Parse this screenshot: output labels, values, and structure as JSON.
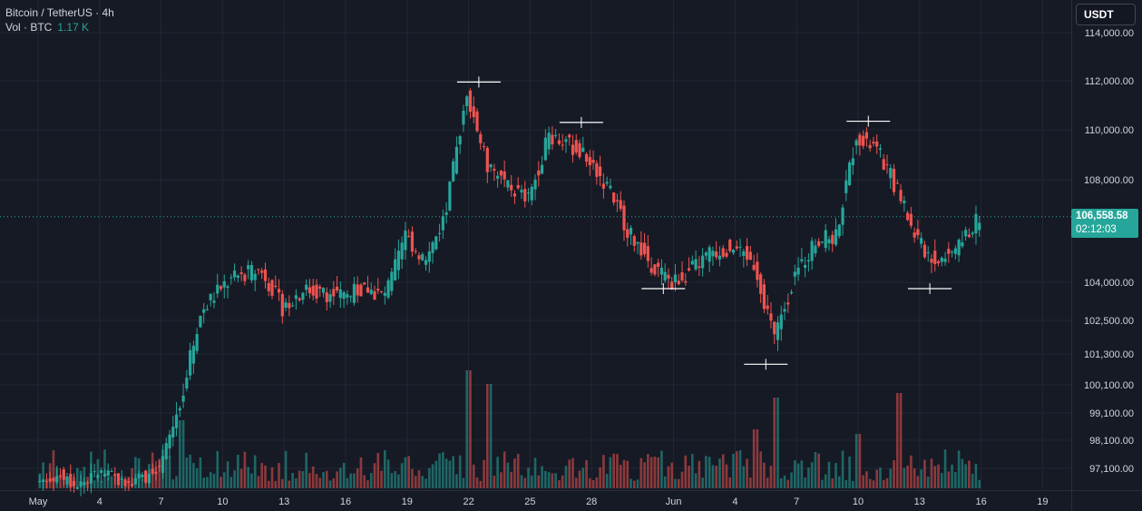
{
  "legend": {
    "symbol": "Bitcoin / TetherUS · 4h",
    "vol_label": "Vol · BTC",
    "vol_value": "1.17 K"
  },
  "unit_button": "USDT",
  "last_price": {
    "price": "106,558.58",
    "countdown": "02:12:03"
  },
  "colors": {
    "background": "#161a25",
    "up": "#26a69a",
    "down": "#ef5350",
    "grid": "#232733",
    "text": "#d1d4dc"
  },
  "chart_data": {
    "type": "candlestick",
    "title": "",
    "y_axis_labels": [
      "114,000.00",
      "112,000.00",
      "110,000.00",
      "108,000.00",
      "104,000.00",
      "102,500.00",
      "101,300.00",
      "100,100.00",
      "99,100.00",
      "98,100.00",
      "97,100.00"
    ],
    "x_axis_labels": [
      "May",
      "4",
      "7",
      "10",
      "13",
      "16",
      "19",
      "22",
      "25",
      "28",
      "Jun",
      "4",
      "7",
      "10",
      "13",
      "16",
      "19"
    ],
    "grid": true,
    "last_price": 106558.58,
    "marked_levels": [
      {
        "x": "May 22",
        "y": 111950
      },
      {
        "x": "May 27",
        "y": 110300
      },
      {
        "x": "Jun 10",
        "y": 110350
      },
      {
        "x": "May 31",
        "y": 103750
      },
      {
        "x": "Jun 5",
        "y": 100900
      },
      {
        "x": "Jun 13",
        "y": 103750
      }
    ],
    "daily_closes": [
      {
        "date": "May 1",
        "close": 96500
      },
      {
        "date": "May 2",
        "close": 96800
      },
      {
        "date": "May 3",
        "close": 96300
      },
      {
        "date": "May 4",
        "close": 96900
      },
      {
        "date": "May 5",
        "close": 96600
      },
      {
        "date": "May 6",
        "close": 96700
      },
      {
        "date": "May 7",
        "close": 96900
      },
      {
        "date": "May 8",
        "close": 99500
      },
      {
        "date": "May 9",
        "close": 102800
      },
      {
        "date": "May 10",
        "close": 103800
      },
      {
        "date": "May 11",
        "close": 104300
      },
      {
        "date": "May 12",
        "close": 104500
      },
      {
        "date": "May 13",
        "close": 103000
      },
      {
        "date": "May 14",
        "close": 103700
      },
      {
        "date": "May 15",
        "close": 103600
      },
      {
        "date": "May 16",
        "close": 103400
      },
      {
        "date": "May 17",
        "close": 103800
      },
      {
        "date": "May 18",
        "close": 103400
      },
      {
        "date": "May 19",
        "close": 105800
      },
      {
        "date": "May 20",
        "close": 104800
      },
      {
        "date": "May 21",
        "close": 106800
      },
      {
        "date": "May 22",
        "close": 111600
      },
      {
        "date": "May 23",
        "close": 108500
      },
      {
        "date": "May 24",
        "close": 107800
      },
      {
        "date": "May 25",
        "close": 107200
      },
      {
        "date": "May 26",
        "close": 109800
      },
      {
        "date": "May 27",
        "close": 109400
      },
      {
        "date": "May 28",
        "close": 108800
      },
      {
        "date": "May 29",
        "close": 107500
      },
      {
        "date": "May 30",
        "close": 105800
      },
      {
        "date": "May 31",
        "close": 104700
      },
      {
        "date": "Jun 1",
        "close": 104000
      },
      {
        "date": "Jun 2",
        "close": 104500
      },
      {
        "date": "Jun 3",
        "close": 105200
      },
      {
        "date": "Jun 4",
        "close": 105400
      },
      {
        "date": "Jun 5",
        "close": 104800
      },
      {
        "date": "Jun 6",
        "close": 101800
      },
      {
        "date": "Jun 7",
        "close": 104300
      },
      {
        "date": "Jun 8",
        "close": 105600
      },
      {
        "date": "Jun 9",
        "close": 105800
      },
      {
        "date": "Jun 10",
        "close": 109800
      },
      {
        "date": "Jun 11",
        "close": 109200
      },
      {
        "date": "Jun 12",
        "close": 107600
      },
      {
        "date": "Jun 13",
        "close": 105500
      },
      {
        "date": "Jun 14",
        "close": 104800
      },
      {
        "date": "Jun 15",
        "close": 105400
      },
      {
        "date": "Jun 16",
        "close": 106560
      }
    ]
  }
}
